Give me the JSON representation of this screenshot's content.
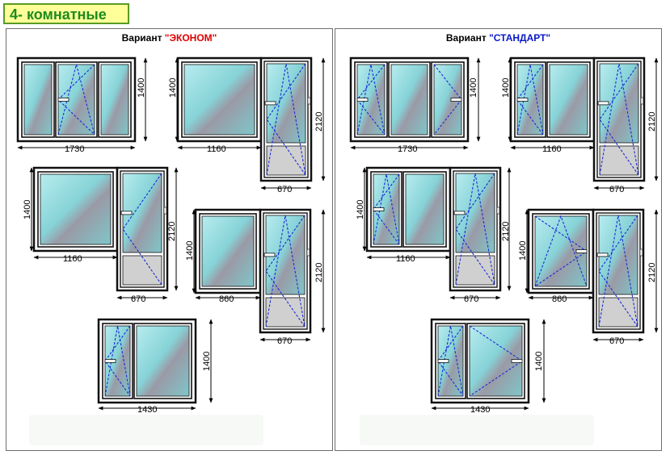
{
  "page_title": "4- комнатные",
  "variants": [
    {
      "prefix": "Вариант ",
      "name": "\"ЭКОНОМ\"",
      "accent": "#e00000"
    },
    {
      "prefix": "Вариант ",
      "name": "\"СТАНДАРТ\"",
      "accent": "#0a17c8"
    }
  ],
  "dimensions": {
    "w1730": "1730",
    "w1160": "1160",
    "w670": "670",
    "w860": "860",
    "w1430": "1430",
    "h1400": "1400",
    "h2120": "2120"
  },
  "colors": {
    "frame": "#111111",
    "glass": "#8fd8dc",
    "panel_fill": "#d0d0d0",
    "open_lines": "#1a2ad8",
    "title_bg": "#ffff99",
    "title_text": "#1e8a1e"
  }
}
